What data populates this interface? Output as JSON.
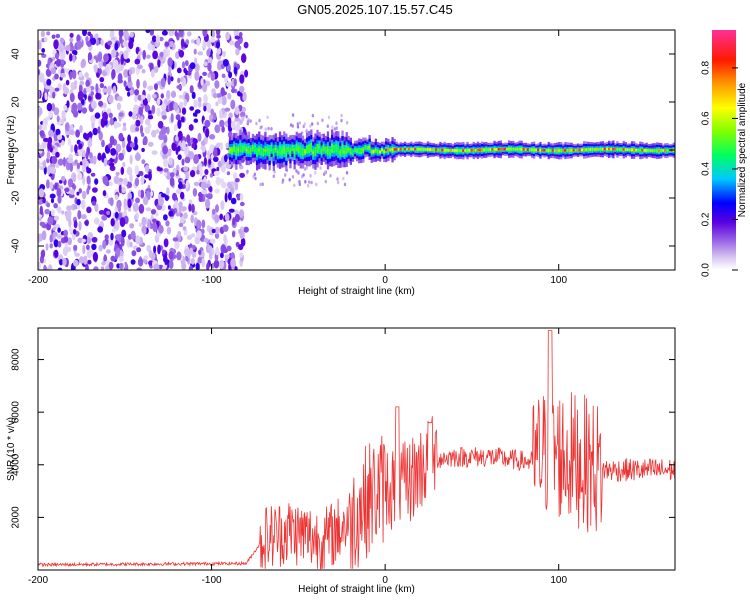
{
  "title": "GN05.2025.107.15.57.C45",
  "chart_data": [
    {
      "type": "heatmap",
      "xlabel": "Height of straight line (km)",
      "ylabel": "Frequency (Hz)",
      "xlim": [
        -200,
        167
      ],
      "ylim": [
        -50,
        50
      ],
      "xticks": [
        -200,
        -100,
        0,
        100
      ],
      "yticks": [
        -40,
        -20,
        0,
        20,
        40
      ],
      "colorbar": {
        "label": "Normalized spectral amplitude",
        "range": [
          0,
          0.95
        ],
        "ticks": [
          0.0,
          0.2,
          0.4,
          0.6,
          0.8
        ]
      }
    },
    {
      "type": "line",
      "xlabel": "Height of straight line (km)",
      "ylabel": "SNR (10 * v/v)",
      "xlim": [
        -200,
        167
      ],
      "ylim": [
        0,
        9200
      ],
      "xticks": [
        -200,
        -100,
        0,
        100
      ],
      "yticks": [
        2000,
        4000,
        6000,
        8000
      ],
      "color": "#ee3333",
      "profile": [
        {
          "x": -200,
          "y": 200
        },
        {
          "x": -80,
          "y": 250
        },
        {
          "x": -70,
          "y": 1200
        },
        {
          "x": -55,
          "y": 1500
        },
        {
          "x": -35,
          "y": 1100
        },
        {
          "x": -20,
          "y": 1900
        },
        {
          "x": -10,
          "y": 2700
        },
        {
          "x": 0,
          "y": 3200
        },
        {
          "x": 10,
          "y": 3100
        },
        {
          "x": 25,
          "y": 4200
        },
        {
          "x": 40,
          "y": 4300
        },
        {
          "x": 60,
          "y": 4300
        },
        {
          "x": 85,
          "y": 4100
        },
        {
          "x": 95,
          "y": 4500
        },
        {
          "x": 110,
          "y": 4200
        },
        {
          "x": 125,
          "y": 3800
        },
        {
          "x": 140,
          "y": 3800
        },
        {
          "x": 167,
          "y": 3800
        }
      ]
    }
  ]
}
